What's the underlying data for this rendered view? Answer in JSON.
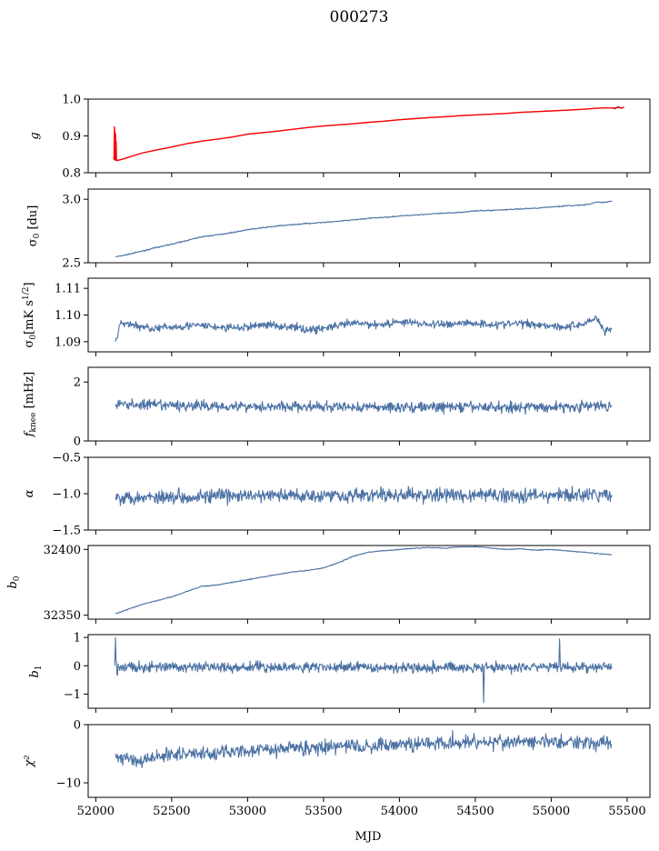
{
  "figure": {
    "title": "000273",
    "xlabel": "MJD"
  },
  "colors": {
    "series": "#4c72a4",
    "fit": "#ff0000",
    "background": "#ffffff",
    "axes": "#000000"
  },
  "chart_data": [
    {
      "type": "line",
      "id": "g",
      "ylabel": "g",
      "xlim": [
        51950,
        55650
      ],
      "ylim": [
        0.8,
        1.0
      ],
      "yticks": [
        0.8,
        0.9,
        1.0
      ],
      "yticklabels": [
        "0.8",
        "0.9",
        "1.0"
      ],
      "series": [
        {
          "kind": "data",
          "x": [
            52120,
            52130,
            52140,
            52160,
            52200,
            52300,
            52400,
            52500,
            52600,
            52700,
            52800,
            52900,
            53000,
            53100,
            53200,
            53300,
            53400,
            53500,
            53600,
            53700,
            53800,
            53900,
            54000,
            54100,
            54200,
            54300,
            54400,
            54500,
            54600,
            54700,
            54800,
            54900,
            55000,
            55100,
            55200,
            55300,
            55350,
            55400,
            55450,
            55480
          ],
          "y": [
            0.835,
            0.834,
            0.833,
            0.835,
            0.84,
            0.853,
            0.862,
            0.87,
            0.879,
            0.886,
            0.891,
            0.897,
            0.905,
            0.909,
            0.913,
            0.918,
            0.923,
            0.927,
            0.93,
            0.933,
            0.937,
            0.94,
            0.944,
            0.947,
            0.95,
            0.952,
            0.955,
            0.957,
            0.959,
            0.961,
            0.964,
            0.966,
            0.968,
            0.97,
            0.972,
            0.975,
            0.976,
            0.976,
            0.977,
            0.977
          ]
        },
        {
          "kind": "fit",
          "x": [
            52120,
            52123,
            52125,
            52126,
            52128,
            52130,
            52133,
            52134,
            52137,
            52140,
            52160,
            52200,
            52300,
            52400,
            52500,
            52600,
            52700,
            52800,
            52900,
            53000,
            53100,
            53200,
            53300,
            53400,
            53500,
            53600,
            53700,
            53800,
            53900,
            54000,
            54100,
            54200,
            54300,
            54400,
            54500,
            54600,
            54700,
            54800,
            54900,
            55000,
            55100,
            55200,
            55300,
            55350,
            55400,
            55420,
            55440,
            55460,
            55480
          ],
          "y": [
            0.835,
            0.925,
            0.835,
            0.912,
            0.836,
            0.905,
            0.835,
            0.885,
            0.834,
            0.833,
            0.835,
            0.84,
            0.853,
            0.862,
            0.87,
            0.879,
            0.886,
            0.891,
            0.897,
            0.905,
            0.909,
            0.913,
            0.918,
            0.923,
            0.927,
            0.93,
            0.933,
            0.937,
            0.94,
            0.944,
            0.947,
            0.95,
            0.952,
            0.955,
            0.957,
            0.959,
            0.961,
            0.964,
            0.966,
            0.968,
            0.97,
            0.972,
            0.975,
            0.976,
            0.976,
            0.974,
            0.979,
            0.975,
            0.978
          ]
        }
      ]
    },
    {
      "type": "line",
      "id": "sigma0_du",
      "ylabel": "σ0 [du]",
      "xlim": [
        51950,
        55650
      ],
      "ylim": [
        2.5,
        3.08
      ],
      "yticks": [
        2.5,
        3.0
      ],
      "yticklabels": [
        "2.5",
        "3.0"
      ],
      "noise": 0.003,
      "series": [
        {
          "kind": "data",
          "x": [
            52130,
            52200,
            52300,
            52400,
            52500,
            52600,
            52700,
            52800,
            52900,
            53000,
            53100,
            53200,
            53300,
            53400,
            53500,
            53600,
            53700,
            53800,
            53900,
            54000,
            54100,
            54200,
            54300,
            54400,
            54500,
            54600,
            54700,
            54800,
            54900,
            55000,
            55100,
            55200,
            55250,
            55300,
            55350,
            55400
          ],
          "y": [
            2.546,
            2.562,
            2.59,
            2.62,
            2.646,
            2.675,
            2.705,
            2.72,
            2.738,
            2.76,
            2.776,
            2.79,
            2.8,
            2.81,
            2.818,
            2.826,
            2.838,
            2.85,
            2.858,
            2.868,
            2.876,
            2.884,
            2.89,
            2.898,
            2.908,
            2.912,
            2.918,
            2.924,
            2.93,
            2.94,
            2.948,
            2.954,
            2.96,
            2.978,
            2.975,
            2.986
          ]
        }
      ]
    },
    {
      "type": "line",
      "id": "sigma0_mk",
      "ylabel": "σ0[mK s^1/2]",
      "xlim": [
        51950,
        55650
      ],
      "ylim": [
        1.0862,
        1.1138
      ],
      "yticks": [
        1.09,
        1.1,
        1.11
      ],
      "yticklabels": [
        "1.09",
        "1.10",
        "1.11"
      ],
      "noise": 0.0011,
      "series": [
        {
          "kind": "data",
          "x": [
            52130,
            52150,
            52170,
            52200,
            52300,
            52400,
            52500,
            52600,
            52700,
            52800,
            52900,
            53000,
            53100,
            53200,
            53300,
            53400,
            53500,
            53600,
            53700,
            53800,
            53900,
            54000,
            54100,
            54200,
            54300,
            54400,
            54500,
            54600,
            54700,
            54800,
            54900,
            55000,
            55100,
            55200,
            55300,
            55350,
            55400
          ],
          "y": [
            1.09,
            1.094,
            1.097,
            1.097,
            1.0955,
            1.095,
            1.0955,
            1.096,
            1.096,
            1.0955,
            1.095,
            1.0955,
            1.0965,
            1.096,
            1.0955,
            1.0945,
            1.095,
            1.096,
            1.097,
            1.0965,
            1.0965,
            1.0975,
            1.097,
            1.0965,
            1.0965,
            1.097,
            1.097,
            1.0965,
            1.0965,
            1.097,
            1.0965,
            1.096,
            1.0955,
            1.0965,
            1.099,
            1.094,
            1.095
          ]
        }
      ]
    },
    {
      "type": "line",
      "id": "fknee",
      "ylabel": "f_knee [mHz]",
      "xlim": [
        51950,
        55650
      ],
      "ylim": [
        0,
        2.5
      ],
      "yticks": [
        0,
        2
      ],
      "yticklabels": [
        "0",
        "2"
      ],
      "noise": 0.13,
      "series": [
        {
          "kind": "data",
          "x": [
            52130,
            52500,
            53000,
            53500,
            54000,
            54500,
            55000,
            55400
          ],
          "y": [
            1.25,
            1.2,
            1.18,
            1.15,
            1.15,
            1.15,
            1.15,
            1.2
          ]
        }
      ]
    },
    {
      "type": "line",
      "id": "alpha",
      "ylabel": "α",
      "xlim": [
        51950,
        55650
      ],
      "ylim": [
        -1.5,
        -0.5
      ],
      "yticks": [
        -1.5,
        -1.0,
        -0.5
      ],
      "yticklabels": [
        "−1.5",
        "−1.0",
        "−0.5"
      ],
      "noise": 0.07,
      "series": [
        {
          "kind": "data",
          "x": [
            52130,
            52500,
            53000,
            53500,
            54000,
            54500,
            55000,
            55400
          ],
          "y": [
            -1.05,
            -1.04,
            -1.03,
            -1.02,
            -1.02,
            -1.02,
            -1.02,
            -1.02
          ]
        }
      ]
    },
    {
      "type": "line",
      "id": "b0",
      "ylabel": "b0",
      "xlim": [
        51950,
        55650
      ],
      "ylim": [
        32347,
        32403
      ],
      "yticks": [
        32350,
        32400
      ],
      "yticklabels": [
        "32350",
        "32400"
      ],
      "noise": 0.25,
      "series": [
        {
          "kind": "data",
          "x": [
            52130,
            52200,
            52300,
            52400,
            52500,
            52600,
            52700,
            52800,
            52900,
            53000,
            53100,
            53200,
            53300,
            53400,
            53500,
            53600,
            53700,
            53800,
            53900,
            54000,
            54100,
            54200,
            54300,
            54400,
            54500,
            54600,
            54700,
            54800,
            54900,
            55000,
            55100,
            55200,
            55300,
            55400
          ],
          "y": [
            32351,
            32354,
            32358,
            32361,
            32364,
            32368,
            32372,
            32373,
            32375,
            32377,
            32379,
            32381,
            32383,
            32384,
            32386,
            32390,
            32395,
            32398,
            32399,
            32400,
            32401,
            32401.5,
            32401,
            32402,
            32402.5,
            32401,
            32400,
            32400.5,
            32399.5,
            32400,
            32399,
            32398,
            32397,
            32396
          ]
        }
      ]
    },
    {
      "type": "line",
      "id": "b1",
      "ylabel": "b1",
      "xlim": [
        51950,
        55650
      ],
      "ylim": [
        -1.5,
        1.1
      ],
      "yticks": [
        -1,
        0,
        1
      ],
      "yticklabels": [
        "−1",
        "0",
        "1"
      ],
      "noise": 0.13,
      "series": [
        {
          "kind": "data",
          "x": [
            52125,
            52130,
            52133,
            52140,
            52150,
            52500,
            53000,
            53500,
            54000,
            54500,
            54550,
            54555,
            54560,
            54600,
            55000,
            55050,
            55055,
            55060,
            55100,
            55400
          ],
          "y": [
            0.0,
            1.0,
            0.2,
            -0.3,
            -0.05,
            -0.05,
            -0.05,
            -0.05,
            -0.05,
            -0.05,
            -0.05,
            -1.3,
            -0.05,
            -0.05,
            -0.05,
            -0.05,
            0.95,
            -0.05,
            -0.05,
            -0.05
          ]
        }
      ]
    },
    {
      "type": "line",
      "id": "chi2",
      "ylabel": "χ²",
      "xlim": [
        51950,
        55650
      ],
      "ylim": [
        -12.5,
        0
      ],
      "yticks": [
        -10,
        0
      ],
      "yticklabels": [
        "−10",
        "0"
      ],
      "noise": 0.9,
      "series": [
        {
          "kind": "data",
          "x": [
            52130,
            52200,
            52300,
            52400,
            52500,
            52600,
            52700,
            52800,
            52900,
            53000,
            53100,
            53200,
            53300,
            53400,
            53500,
            53600,
            53700,
            53800,
            53900,
            54000,
            54100,
            54200,
            54300,
            54400,
            54500,
            54600,
            54700,
            54800,
            54900,
            55000,
            55100,
            55200,
            55300,
            55400
          ],
          "y": [
            -5.0,
            -5.8,
            -6.2,
            -5.5,
            -5.0,
            -5.0,
            -5.0,
            -4.8,
            -4.7,
            -4.5,
            -4.3,
            -4.2,
            -4.0,
            -4.0,
            -4.0,
            -3.8,
            -3.8,
            -3.7,
            -3.5,
            -3.3,
            -3.2,
            -3.2,
            -3.0,
            -3.0,
            -3.0,
            -3.0,
            -3.0,
            -3.0,
            -3.0,
            -3.0,
            -3.0,
            -3.0,
            -3.0,
            -3.5
          ]
        }
      ]
    }
  ],
  "xaxis": {
    "ticks": [
      52000,
      52500,
      53000,
      53500,
      54000,
      54500,
      55000,
      55500
    ],
    "ticklabels": [
      "52000",
      "52500",
      "53000",
      "53500",
      "54000",
      "54500",
      "55000",
      "55500"
    ]
  }
}
